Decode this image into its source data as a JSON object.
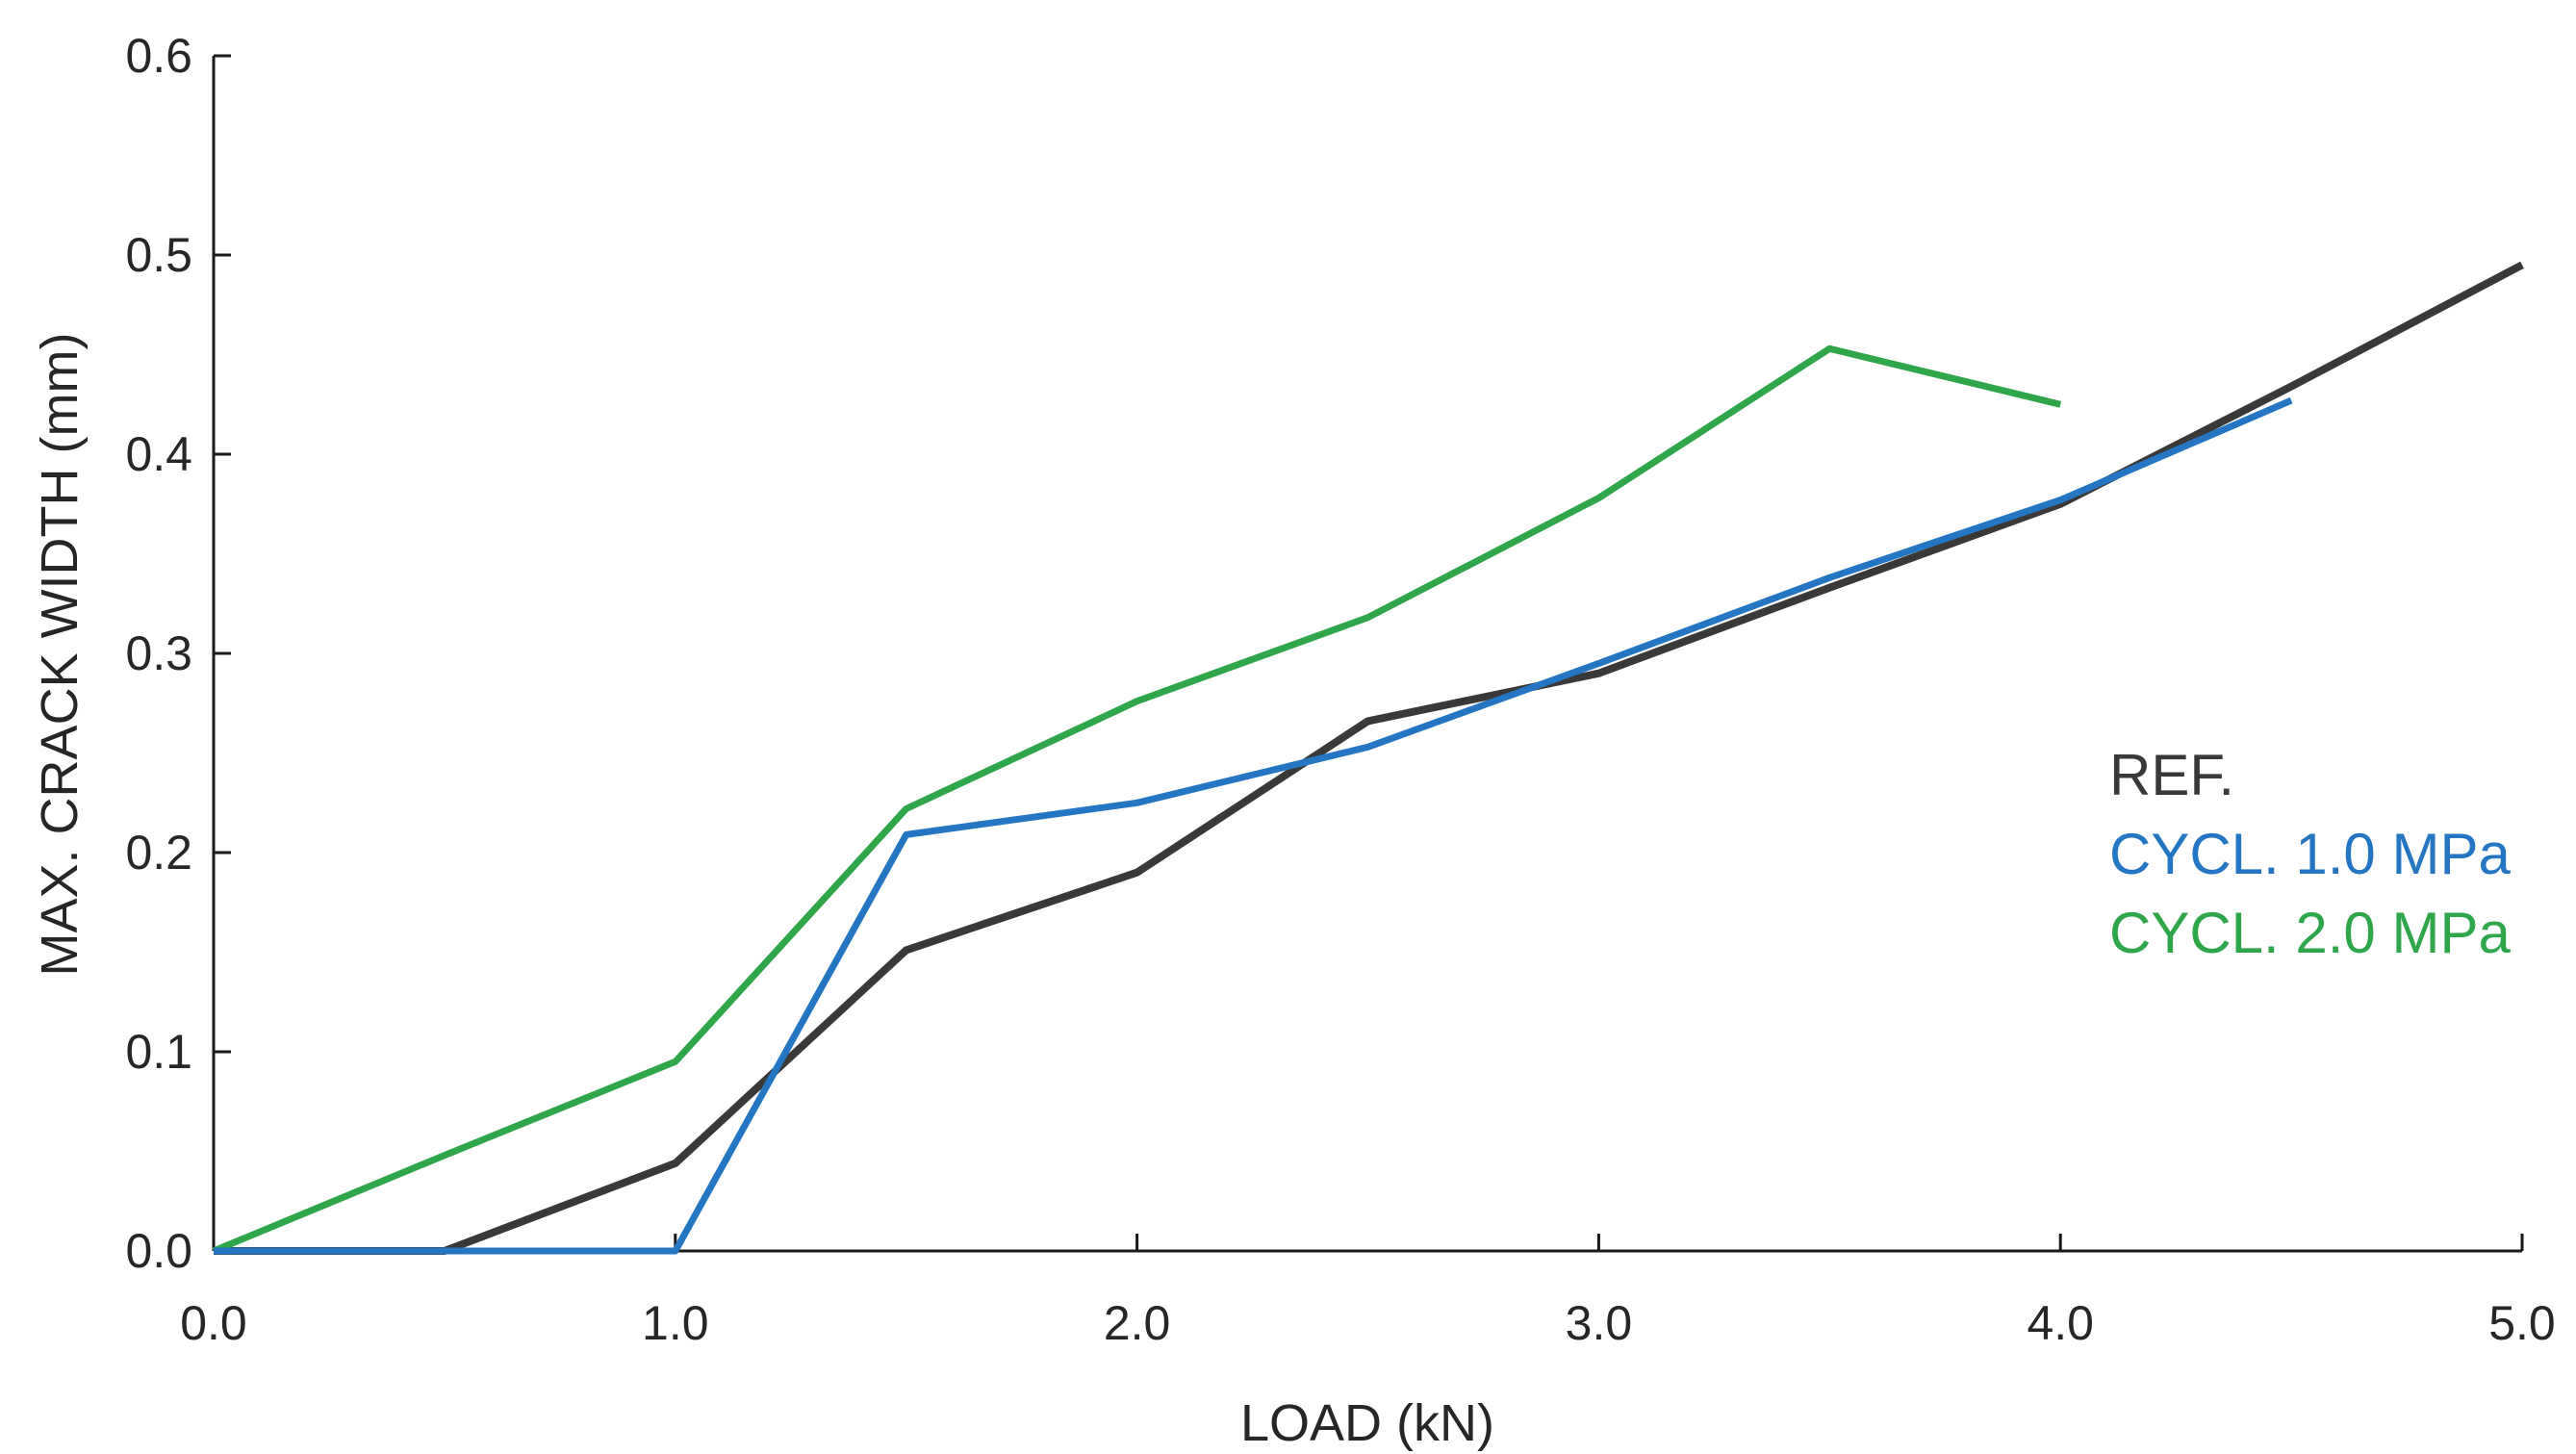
{
  "chart_data": {
    "type": "line",
    "title": "",
    "xlabel": "LOAD (kN)",
    "ylabel": "MAX. CRACK WIDTH (mm)",
    "xlim": [
      0.0,
      5.0
    ],
    "ylim": [
      0.0,
      0.6
    ],
    "grid": false,
    "background": "#ffffff",
    "axis_color": "#1a1a1a",
    "text_color": "#262626",
    "legend_position": "right-middle",
    "x_ticks": [
      0.0,
      1.0,
      2.0,
      3.0,
      4.0,
      5.0
    ],
    "x_tick_labels": [
      "0.0",
      "1.0",
      "2.0",
      "3.0",
      "4.0",
      "5.0"
    ],
    "y_ticks": [
      0.0,
      0.1,
      0.2,
      0.3,
      0.4,
      0.5,
      0.6
    ],
    "y_tick_labels": [
      "0.0",
      "0.1",
      "0.2",
      "0.3",
      "0.4",
      "0.5",
      "0.6"
    ],
    "series": [
      {
        "name": "REF.",
        "color": "#3b3838",
        "stroke_width": 8,
        "x": [
          0.0,
          0.5,
          1.0,
          1.5,
          2.0,
          2.5,
          3.0,
          3.5,
          4.0,
          4.5,
          5.0
        ],
        "y": [
          0.0,
          0.0,
          0.044,
          0.151,
          0.19,
          0.266,
          0.29,
          0.333,
          0.375,
          0.434,
          0.495
        ]
      },
      {
        "name": "CYCL. 1.0 MPa",
        "color": "#2576c2",
        "stroke_width": 7,
        "x": [
          0.0,
          0.5,
          1.0,
          1.5,
          2.0,
          2.5,
          3.0,
          3.5,
          4.0,
          4.5
        ],
        "y": [
          0.0,
          0.0,
          0.0,
          0.209,
          0.225,
          0.253,
          0.295,
          0.338,
          0.377,
          0.427
        ]
      },
      {
        "name": "CYCL. 2.0 MPa",
        "color": "#30a64a",
        "stroke_width": 7,
        "x": [
          0.0,
          0.5,
          1.0,
          1.5,
          2.0,
          2.5,
          3.0,
          3.5,
          4.0
        ],
        "y": [
          0.0,
          0.048,
          0.095,
          0.222,
          0.276,
          0.318,
          0.378,
          0.453,
          0.425
        ]
      }
    ]
  }
}
